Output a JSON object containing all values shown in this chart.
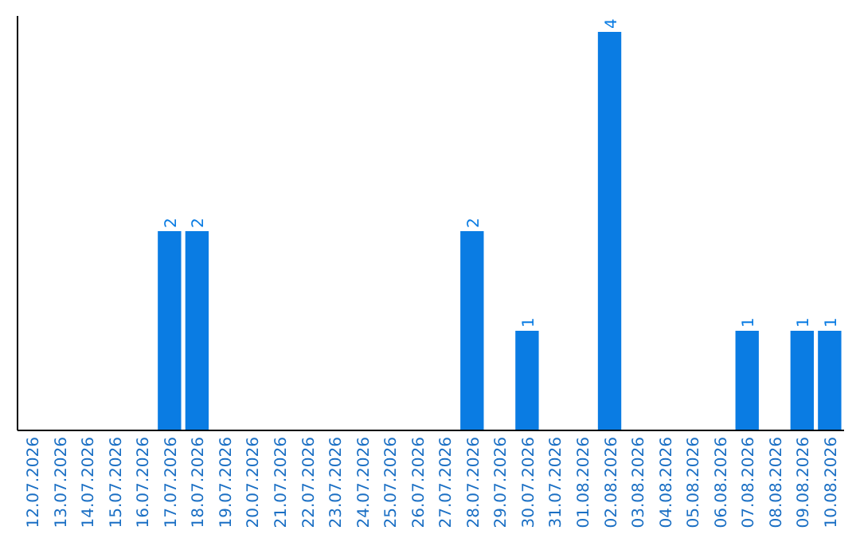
{
  "chart_data": {
    "type": "bar",
    "categories": [
      "12.07.2026",
      "13.07.2026",
      "14.07.2026",
      "15.07.2026",
      "16.07.2026",
      "17.07.2026",
      "18.07.2026",
      "19.07.2026",
      "20.07.2026",
      "21.07.2026",
      "22.07.2026",
      "23.07.2026",
      "24.07.2026",
      "25.07.2026",
      "26.07.2026",
      "27.07.2026",
      "28.07.2026",
      "29.07.2026",
      "30.07.2026",
      "31.07.2026",
      "01.08.2026",
      "02.08.2026",
      "03.08.2026",
      "04.08.2026",
      "05.08.2026",
      "06.08.2026",
      "07.08.2026",
      "08.08.2026",
      "09.08.2026",
      "10.08.2026"
    ],
    "values": [
      0,
      0,
      0,
      0,
      0,
      2,
      2,
      0,
      0,
      0,
      0,
      0,
      0,
      0,
      0,
      0,
      2,
      0,
      1,
      0,
      0,
      4,
      0,
      0,
      0,
      0,
      1,
      0,
      1,
      1
    ],
    "value_labels": [
      null,
      null,
      null,
      null,
      null,
      "2",
      "2",
      null,
      null,
      null,
      null,
      null,
      null,
      null,
      null,
      null,
      "2",
      null,
      "1",
      null,
      null,
      "4",
      null,
      null,
      null,
      null,
      "1",
      null,
      "1",
      "1"
    ],
    "color": "#0a7ce3",
    "ylim": [
      0,
      4.16
    ],
    "tick_labels": "x"
  }
}
